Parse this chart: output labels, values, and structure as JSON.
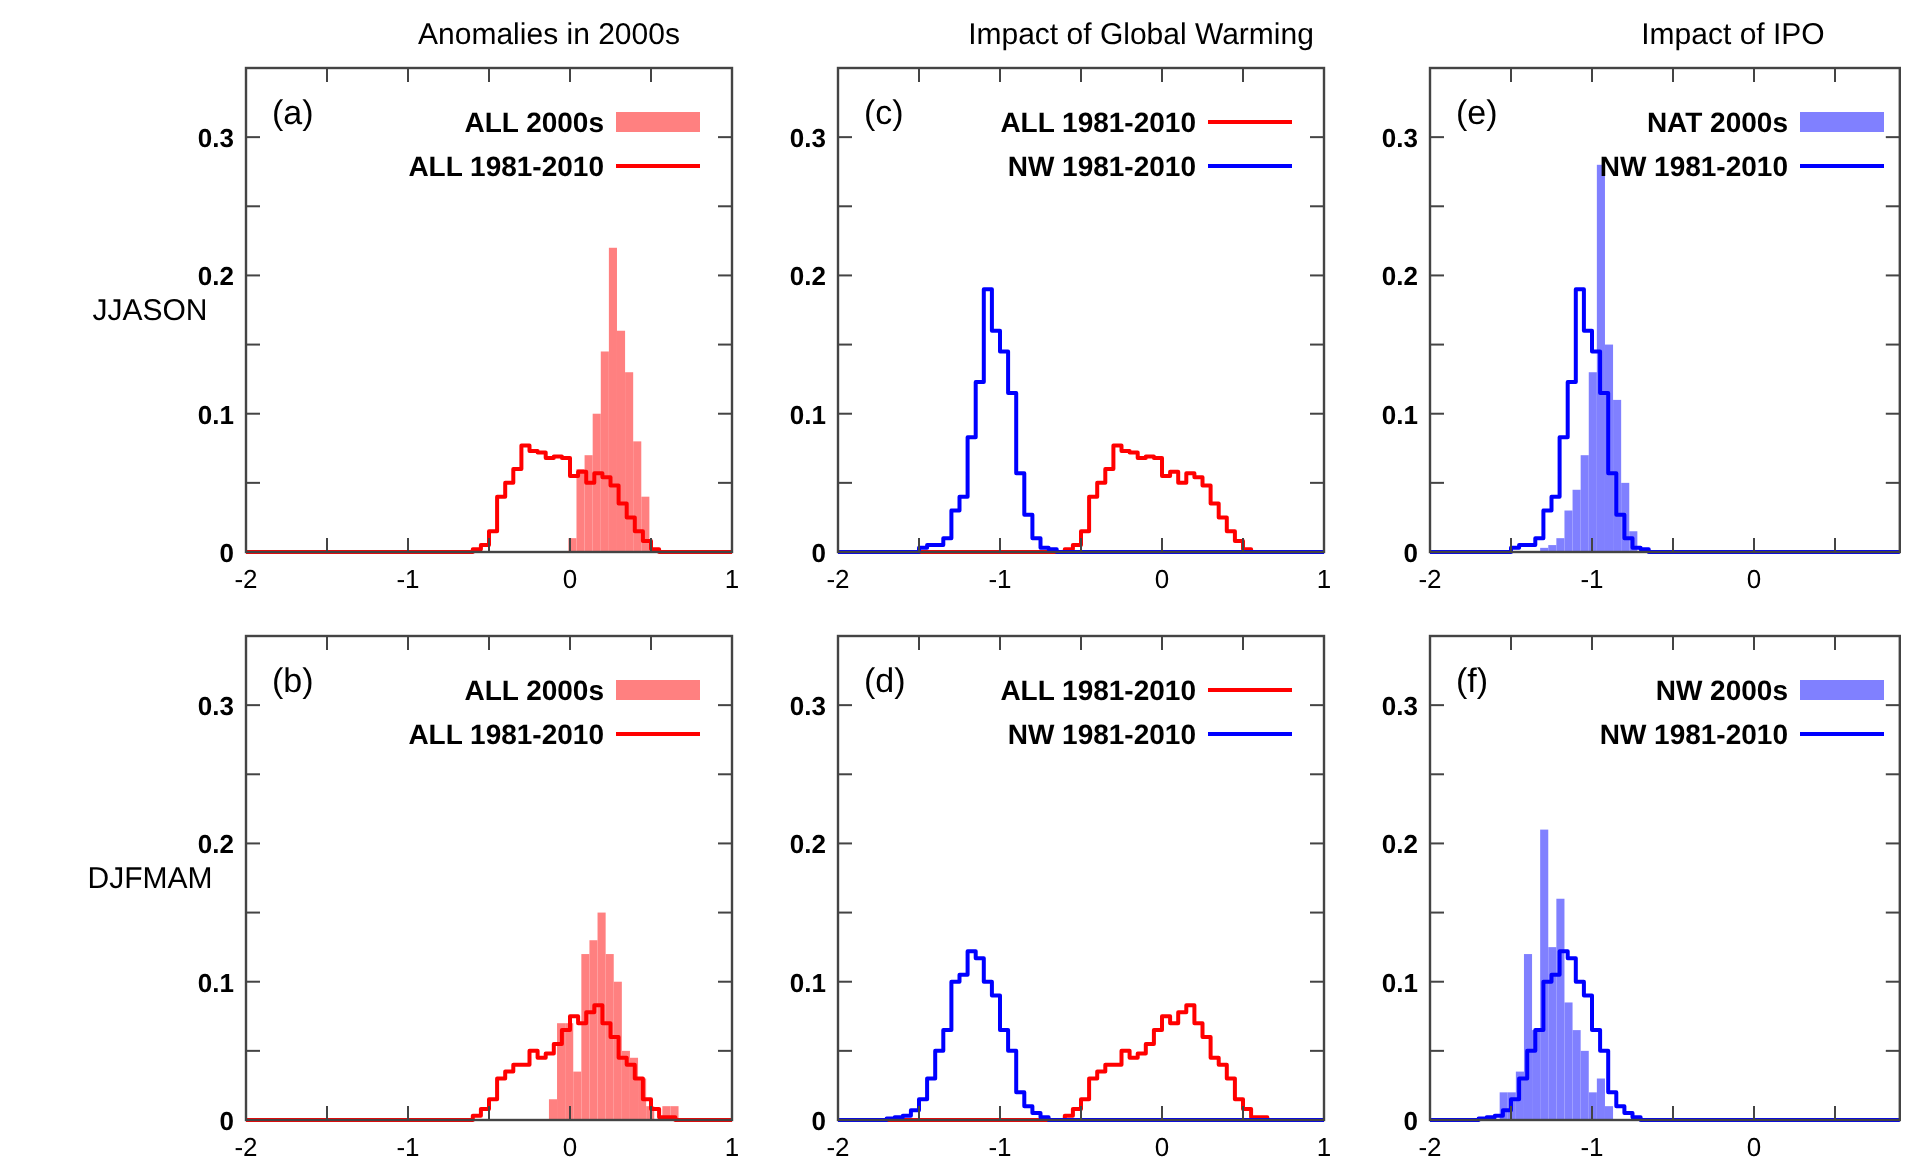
{
  "chart_data": [
    {
      "type": "histogram",
      "title": "Anomalies in 2000s",
      "ylabel": "JJASON",
      "annotations": [
        "(a)"
      ],
      "legend": "top right",
      "xlim": [
        -2,
        1
      ],
      "xticks": [
        -2,
        {
          "value": -1.5,
          "label": null
        },
        -1,
        {
          "value": -0.5,
          "label": null
        },
        0,
        {
          "value": 0.5,
          "label": null
        },
        1
      ],
      "ylim": [
        0,
        0.35
      ],
      "yticks": [
        0,
        {
          "value": 0.05,
          "label": null
        },
        0.1,
        {
          "value": 0.15,
          "label": null
        },
        0.2,
        {
          "value": 0.25,
          "label": null
        },
        0.3
      ],
      "series": [
        {
          "name": "ALL 2000s",
          "type": "histogram",
          "color": "#ff8080",
          "bins": [
            -0.01,
            0.04,
            0.09,
            0.14,
            0.19,
            0.24,
            0.29,
            0.34,
            0.39,
            0.44,
            0.49
          ],
          "values": [
            0.01,
            0.06,
            0.07,
            0.1,
            0.145,
            0.22,
            0.16,
            0.13,
            0.08,
            0.04
          ]
        },
        {
          "name": "ALL 1981-2010",
          "type": "step",
          "color": "#ff0000",
          "x": [
            -2,
            -0.6,
            -0.55,
            -0.5,
            -0.45,
            -0.4,
            -0.35,
            -0.3,
            -0.25,
            -0.2,
            -0.15,
            -0.1,
            -0.05,
            0,
            0.05,
            0.1,
            0.15,
            0.2,
            0.25,
            0.3,
            0.35,
            0.4,
            0.45,
            0.5,
            0.55,
            1
          ],
          "values": [
            0,
            0.002,
            0.005,
            0.015,
            0.04,
            0.05,
            0.06,
            0.077,
            0.073,
            0.072,
            0.068,
            0.069,
            0.068,
            0.055,
            0.058,
            0.05,
            0.057,
            0.054,
            0.048,
            0.035,
            0.025,
            0.015,
            0.008,
            0.002,
            0,
            0
          ]
        }
      ]
    },
    {
      "type": "histogram",
      "title": "Impact of Global Warming",
      "annotations": [
        "(c)"
      ],
      "legend": "top right",
      "xlim": [
        -2,
        1
      ],
      "xticks": [
        -2,
        {
          "value": -1.5,
          "label": null
        },
        -1,
        {
          "value": -0.5,
          "label": null
        },
        0,
        {
          "value": 0.5,
          "label": null
        },
        1
      ],
      "ylim": [
        0,
        0.35
      ],
      "yticks": [
        0,
        {
          "value": 0.05,
          "label": null
        },
        0.1,
        {
          "value": 0.15,
          "label": null
        },
        0.2,
        {
          "value": 0.25,
          "label": null
        },
        0.3
      ],
      "series": [
        {
          "name": "ALL 1981-2010",
          "type": "step",
          "color": "#ff0000",
          "x": [
            -2,
            -0.6,
            -0.55,
            -0.5,
            -0.45,
            -0.4,
            -0.35,
            -0.3,
            -0.25,
            -0.2,
            -0.15,
            -0.1,
            -0.05,
            0,
            0.05,
            0.1,
            0.15,
            0.2,
            0.25,
            0.3,
            0.35,
            0.4,
            0.45,
            0.5,
            0.55,
            1
          ],
          "values": [
            0,
            0.002,
            0.005,
            0.015,
            0.04,
            0.05,
            0.06,
            0.077,
            0.073,
            0.072,
            0.068,
            0.069,
            0.068,
            0.055,
            0.058,
            0.05,
            0.057,
            0.054,
            0.048,
            0.035,
            0.025,
            0.015,
            0.008,
            0.002,
            0,
            0
          ]
        },
        {
          "name": "NW 1981-2010",
          "type": "step",
          "color": "#0000ff",
          "x": [
            -2,
            -1.5,
            -1.45,
            -1.4,
            -1.35,
            -1.3,
            -1.25,
            -1.2,
            -1.15,
            -1.1,
            -1.05,
            -1,
            -0.95,
            -0.9,
            -0.85,
            -0.8,
            -0.75,
            -0.7,
            -0.65,
            1
          ],
          "values": [
            0,
            0.003,
            0.005,
            0.005,
            0.01,
            0.03,
            0.04,
            0.083,
            0.123,
            0.19,
            0.16,
            0.145,
            0.115,
            0.057,
            0.027,
            0.01,
            0.003,
            0.002,
            0,
            0
          ]
        }
      ]
    },
    {
      "type": "histogram",
      "title": "Impact of IPO",
      "annotations": [
        "(e)"
      ],
      "legend": "top right",
      "xlim": [
        -2,
        0.9
      ],
      "xticks": [
        -2,
        {
          "value": -1.5,
          "label": null
        },
        -1,
        {
          "value": -0.5,
          "label": null
        },
        0,
        {
          "value": 0.5,
          "label": null
        }
      ],
      "ylim": [
        0,
        0.35
      ],
      "yticks": [
        0,
        {
          "value": 0.05,
          "label": null
        },
        0.1,
        {
          "value": 0.15,
          "label": null
        },
        0.2,
        {
          "value": 0.25,
          "label": null
        },
        0.3
      ],
      "series": [
        {
          "name": "NAT 2000s",
          "type": "histogram",
          "color": "#8080ff",
          "bins": [
            -1.32,
            -1.27,
            -1.22,
            -1.17,
            -1.12,
            -1.07,
            -1.02,
            -0.97,
            -0.92,
            -0.87,
            -0.82,
            -0.77,
            -0.72
          ],
          "values": [
            0.003,
            0.005,
            0.01,
            0.03,
            0.045,
            0.07,
            0.13,
            0.28,
            0.15,
            0.11,
            0.05,
            0.015
          ]
        },
        {
          "name": "NW 1981-2010",
          "type": "step",
          "color": "#0000ff",
          "x": [
            -2,
            -1.5,
            -1.45,
            -1.4,
            -1.35,
            -1.3,
            -1.25,
            -1.2,
            -1.15,
            -1.1,
            -1.05,
            -1,
            -0.95,
            -0.9,
            -0.85,
            -0.8,
            -0.75,
            -0.7,
            -0.65,
            0.9
          ],
          "values": [
            0,
            0.003,
            0.005,
            0.005,
            0.01,
            0.03,
            0.04,
            0.083,
            0.123,
            0.19,
            0.16,
            0.145,
            0.115,
            0.057,
            0.027,
            0.01,
            0.003,
            0.002,
            0,
            0
          ]
        }
      ]
    },
    {
      "type": "histogram",
      "ylabel": "DJFMAM",
      "annotations": [
        "(b)"
      ],
      "legend": "top right",
      "xlim": [
        -2,
        1
      ],
      "xticks": [
        -2,
        {
          "value": -1.5,
          "label": null
        },
        -1,
        {
          "value": -0.5,
          "label": null
        },
        0,
        {
          "value": 0.5,
          "label": null
        },
        1
      ],
      "ylim": [
        0,
        0.35
      ],
      "yticks": [
        0,
        {
          "value": 0.05,
          "label": null
        },
        0.1,
        {
          "value": 0.15,
          "label": null
        },
        0.2,
        {
          "value": 0.25,
          "label": null
        },
        0.3
      ],
      "series": [
        {
          "name": "ALL 2000s",
          "type": "histogram",
          "color": "#ff8080",
          "bins": [
            -0.13,
            -0.08,
            -0.03,
            0.02,
            0.07,
            0.12,
            0.17,
            0.22,
            0.27,
            0.32,
            0.37,
            0.42,
            0.47,
            0.52,
            0.57,
            0.62,
            0.67
          ],
          "values": [
            0.015,
            0.07,
            0.07,
            0.035,
            0.12,
            0.13,
            0.15,
            0.12,
            0.1,
            0.05,
            0.045,
            0.03,
            0.01,
            null,
            0.01,
            0.01
          ]
        },
        {
          "name": "ALL 1981-2010",
          "type": "step",
          "color": "#ff0000",
          "x": [
            -2,
            -0.6,
            -0.55,
            -0.5,
            -0.45,
            -0.4,
            -0.35,
            -0.3,
            -0.25,
            -0.2,
            -0.15,
            -0.1,
            -0.05,
            0,
            0.05,
            0.1,
            0.15,
            0.2,
            0.25,
            0.3,
            0.35,
            0.4,
            0.45,
            0.5,
            0.55,
            0.6,
            0.65,
            1
          ],
          "values": [
            0,
            0.003,
            0.008,
            0.015,
            0.03,
            0.035,
            0.04,
            0.04,
            0.05,
            0.045,
            0.048,
            0.055,
            0.065,
            0.075,
            0.07,
            0.078,
            0.083,
            0.07,
            0.06,
            0.045,
            0.04,
            0.03,
            0.015,
            0.008,
            0.002,
            0.002,
            0,
            0
          ]
        }
      ]
    },
    {
      "type": "histogram",
      "annotations": [
        "(d)"
      ],
      "legend": "top right",
      "xlim": [
        -2,
        1
      ],
      "xticks": [
        -2,
        {
          "value": -1.5,
          "label": null
        },
        -1,
        {
          "value": -0.5,
          "label": null
        },
        0,
        {
          "value": 0.5,
          "label": null
        },
        1
      ],
      "ylim": [
        0,
        0.35
      ],
      "yticks": [
        0,
        {
          "value": 0.05,
          "label": null
        },
        0.1,
        {
          "value": 0.15,
          "label": null
        },
        0.2,
        {
          "value": 0.25,
          "label": null
        },
        0.3
      ],
      "series": [
        {
          "name": "ALL 1981-2010",
          "type": "step",
          "color": "#ff0000",
          "x": [
            -2,
            -0.6,
            -0.55,
            -0.5,
            -0.45,
            -0.4,
            -0.35,
            -0.3,
            -0.25,
            -0.2,
            -0.15,
            -0.1,
            -0.05,
            0,
            0.05,
            0.1,
            0.15,
            0.2,
            0.25,
            0.3,
            0.35,
            0.4,
            0.45,
            0.5,
            0.55,
            0.6,
            0.65,
            1
          ],
          "values": [
            0,
            0.003,
            0.008,
            0.015,
            0.03,
            0.035,
            0.04,
            0.04,
            0.05,
            0.045,
            0.048,
            0.055,
            0.065,
            0.075,
            0.07,
            0.078,
            0.083,
            0.07,
            0.06,
            0.045,
            0.04,
            0.03,
            0.015,
            0.008,
            0.002,
            0.002,
            0,
            0
          ]
        },
        {
          "name": "NW 1981-2010",
          "type": "step",
          "color": "#0000ff",
          "x": [
            -2,
            -1.7,
            -1.65,
            -1.6,
            -1.55,
            -1.5,
            -1.45,
            -1.4,
            -1.35,
            -1.3,
            -1.25,
            -1.2,
            -1.15,
            -1.1,
            -1.05,
            -1,
            -0.95,
            -0.9,
            -0.85,
            -0.8,
            -0.75,
            -0.7,
            1
          ],
          "values": [
            0,
            0.001,
            0.002,
            0.003,
            0.007,
            0.015,
            0.03,
            0.05,
            0.065,
            0.1,
            0.105,
            0.122,
            0.117,
            0.1,
            0.09,
            0.065,
            0.05,
            0.02,
            0.01,
            0.005,
            0.002,
            0,
            0
          ]
        }
      ]
    },
    {
      "type": "histogram",
      "annotations": [
        "(f)"
      ],
      "legend": "top right",
      "xlim": [
        -2,
        0.9
      ],
      "xticks": [
        -2,
        {
          "value": -1.5,
          "label": null
        },
        -1,
        {
          "value": -0.5,
          "label": null
        },
        0,
        {
          "value": 0.5,
          "label": null
        }
      ],
      "ylim": [
        0,
        0.35
      ],
      "yticks": [
        0,
        {
          "value": 0.05,
          "label": null
        },
        0.1,
        {
          "value": 0.15,
          "label": null
        },
        0.2,
        {
          "value": 0.25,
          "label": null
        },
        0.3
      ],
      "series": [
        {
          "name": "NW 2000s",
          "type": "histogram",
          "color": "#8080ff",
          "bins": [
            -1.57,
            -1.52,
            -1.47,
            -1.42,
            -1.37,
            -1.32,
            -1.27,
            -1.22,
            -1.17,
            -1.12,
            -1.07,
            -1.02,
            -0.97,
            -0.92,
            -0.87
          ],
          "values": [
            0.02,
            0.02,
            0.035,
            0.12,
            0.065,
            0.21,
            0.125,
            0.16,
            0.085,
            0.065,
            0.05,
            0.02,
            0.03,
            0.01
          ]
        },
        {
          "name": "NW 1981-2010",
          "type": "step",
          "color": "#0000ff",
          "x": [
            -2,
            -1.7,
            -1.65,
            -1.6,
            -1.55,
            -1.5,
            -1.45,
            -1.4,
            -1.35,
            -1.3,
            -1.25,
            -1.2,
            -1.15,
            -1.1,
            -1.05,
            -1,
            -0.95,
            -0.9,
            -0.85,
            -0.8,
            -0.75,
            -0.7,
            0.9
          ],
          "values": [
            0,
            0.001,
            0.002,
            0.003,
            0.007,
            0.015,
            0.03,
            0.05,
            0.065,
            0.1,
            0.105,
            0.122,
            0.117,
            0.1,
            0.09,
            0.065,
            0.05,
            0.02,
            0.01,
            0.005,
            0.002,
            0,
            0
          ]
        }
      ]
    }
  ]
}
